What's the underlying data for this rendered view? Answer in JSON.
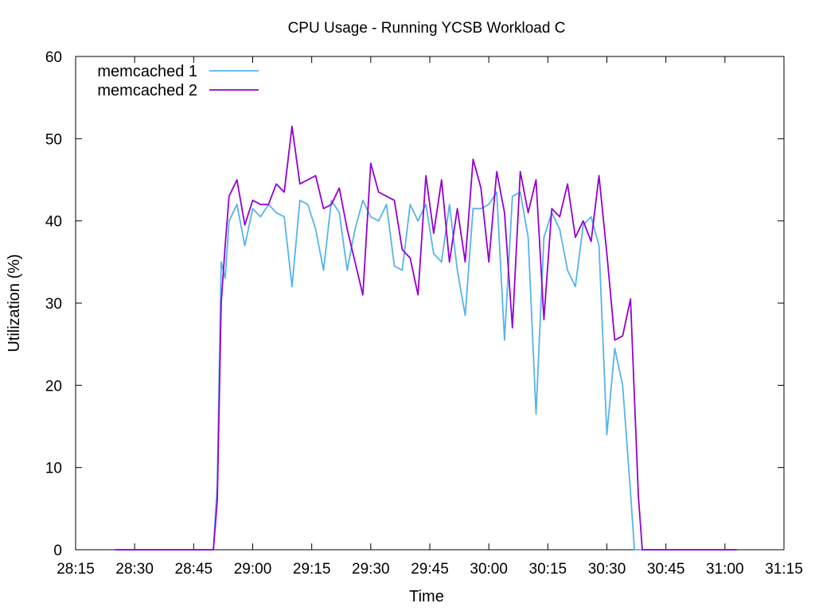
{
  "chart_data": {
    "type": "line",
    "title": "CPU Usage - Running YCSB Workload C",
    "xlabel": "Time",
    "ylabel": "Utilization (%)",
    "xlim": [
      "28:15",
      "31:15"
    ],
    "ylim": [
      0,
      60
    ],
    "x_ticks": [
      "28:15",
      "28:30",
      "28:45",
      "29:00",
      "29:15",
      "29:30",
      "29:45",
      "30:00",
      "30:15",
      "30:30",
      "30:45",
      "31:00",
      "31:15"
    ],
    "y_ticks": [
      0,
      10,
      20,
      30,
      40,
      50,
      60
    ],
    "grid": false,
    "legend_position": "top-left",
    "colors": {
      "memcached 1": "#56b4e9",
      "memcached 2": "#9400d3"
    },
    "series": [
      {
        "name": "memcached 1",
        "color": "#56b4e9",
        "points": [
          [
            "28:25",
            0
          ],
          [
            "28:35",
            0
          ],
          [
            "28:45",
            0
          ],
          [
            "28:49",
            0
          ],
          [
            "28:50",
            0
          ],
          [
            "28:51",
            8
          ],
          [
            "28:52",
            35
          ],
          [
            "28:53",
            33
          ],
          [
            "28:54",
            40
          ],
          [
            "28:56",
            42
          ],
          [
            "28:58",
            37
          ],
          [
            "29:00",
            41.5
          ],
          [
            "29:02",
            40.5
          ],
          [
            "29:04",
            42
          ],
          [
            "29:06",
            41
          ],
          [
            "29:08",
            40.5
          ],
          [
            "29:10",
            32
          ],
          [
            "29:12",
            42.5
          ],
          [
            "29:14",
            42
          ],
          [
            "29:16",
            39
          ],
          [
            "29:18",
            34
          ],
          [
            "29:20",
            42.5
          ],
          [
            "29:22",
            41
          ],
          [
            "29:24",
            34
          ],
          [
            "29:26",
            39
          ],
          [
            "29:28",
            42.5
          ],
          [
            "29:30",
            40.5
          ],
          [
            "29:32",
            40
          ],
          [
            "29:34",
            42
          ],
          [
            "29:36",
            34.5
          ],
          [
            "29:38",
            34
          ],
          [
            "29:40",
            42
          ],
          [
            "29:42",
            40
          ],
          [
            "29:44",
            42
          ],
          [
            "29:46",
            36
          ],
          [
            "29:48",
            35
          ],
          [
            "29:50",
            42
          ],
          [
            "29:52",
            34
          ],
          [
            "29:54",
            28.5
          ],
          [
            "29:56",
            41.5
          ],
          [
            "29:58",
            41.5
          ],
          [
            "30:00",
            42
          ],
          [
            "30:02",
            43.5
          ],
          [
            "30:04",
            25.5
          ],
          [
            "30:06",
            43
          ],
          [
            "30:08",
            43.5
          ],
          [
            "30:10",
            38
          ],
          [
            "30:12",
            16.5
          ],
          [
            "30:14",
            38
          ],
          [
            "30:16",
            41
          ],
          [
            "30:18",
            39
          ],
          [
            "30:20",
            34
          ],
          [
            "30:22",
            32
          ],
          [
            "30:24",
            39.5
          ],
          [
            "30:26",
            40.5
          ],
          [
            "30:28",
            37
          ],
          [
            "30:30",
            14
          ],
          [
            "30:32",
            24.5
          ],
          [
            "30:34",
            20
          ],
          [
            "30:36",
            7
          ],
          [
            "30:37",
            0
          ],
          [
            "30:45",
            0
          ],
          [
            "31:00",
            0
          ],
          [
            "31:03",
            0
          ]
        ]
      },
      {
        "name": "memcached 2",
        "color": "#9400d3",
        "points": [
          [
            "28:25",
            0
          ],
          [
            "28:35",
            0
          ],
          [
            "28:45",
            0
          ],
          [
            "28:49",
            0
          ],
          [
            "28:50",
            0
          ],
          [
            "28:51",
            6
          ],
          [
            "28:52",
            30
          ],
          [
            "28:53",
            37
          ],
          [
            "28:54",
            43
          ],
          [
            "28:56",
            45
          ],
          [
            "28:58",
            39.5
          ],
          [
            "29:00",
            42.5
          ],
          [
            "29:02",
            42
          ],
          [
            "29:04",
            42
          ],
          [
            "29:06",
            44.5
          ],
          [
            "29:08",
            43.5
          ],
          [
            "29:10",
            51.5
          ],
          [
            "29:12",
            44.5
          ],
          [
            "29:14",
            45
          ],
          [
            "29:16",
            45.5
          ],
          [
            "29:18",
            41.5
          ],
          [
            "29:20",
            42
          ],
          [
            "29:22",
            44
          ],
          [
            "29:24",
            39
          ],
          [
            "29:26",
            35
          ],
          [
            "29:28",
            31
          ],
          [
            "29:30",
            47
          ],
          [
            "29:32",
            43.5
          ],
          [
            "29:34",
            43
          ],
          [
            "29:36",
            42.5
          ],
          [
            "29:38",
            36.5
          ],
          [
            "29:40",
            35.5
          ],
          [
            "29:42",
            31
          ],
          [
            "29:44",
            45.5
          ],
          [
            "29:46",
            38.5
          ],
          [
            "29:48",
            45
          ],
          [
            "29:50",
            35
          ],
          [
            "29:52",
            41.5
          ],
          [
            "29:54",
            35
          ],
          [
            "29:56",
            47.5
          ],
          [
            "29:58",
            44
          ],
          [
            "30:00",
            35
          ],
          [
            "30:02",
            46
          ],
          [
            "30:04",
            41
          ],
          [
            "30:06",
            27
          ],
          [
            "30:08",
            46
          ],
          [
            "30:10",
            41
          ],
          [
            "30:12",
            45
          ],
          [
            "30:14",
            28
          ],
          [
            "30:16",
            41.5
          ],
          [
            "30:18",
            40.5
          ],
          [
            "30:20",
            44.5
          ],
          [
            "30:22",
            38
          ],
          [
            "30:24",
            40
          ],
          [
            "30:26",
            37.5
          ],
          [
            "30:28",
            45.5
          ],
          [
            "30:30",
            36
          ],
          [
            "30:32",
            25.5
          ],
          [
            "30:34",
            26
          ],
          [
            "30:36",
            30.5
          ],
          [
            "30:38",
            6.5
          ],
          [
            "30:39",
            0
          ],
          [
            "30:45",
            0
          ],
          [
            "31:00",
            0
          ],
          [
            "31:03",
            0
          ]
        ]
      }
    ]
  }
}
